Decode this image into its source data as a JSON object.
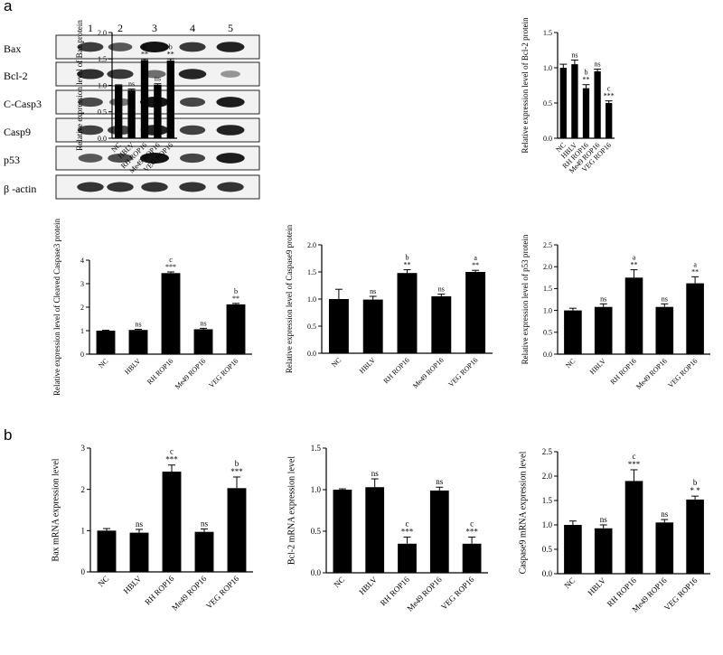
{
  "panel_labels": [
    "a",
    "b"
  ],
  "blot": {
    "lane_numbers": [
      "1",
      "2",
      "3",
      "4",
      "5"
    ],
    "rows": [
      {
        "label": "Bax",
        "intensity": [
          0.78,
          0.62,
          1.0,
          0.8,
          0.92
        ]
      },
      {
        "label": "Bcl-2",
        "intensity": [
          0.85,
          0.8,
          0.5,
          0.9,
          0.28
        ]
      },
      {
        "label": "C-Casp3",
        "intensity": [
          0.7,
          0.45,
          1.0,
          0.72,
          0.95
        ]
      },
      {
        "label": "Casp9",
        "intensity": [
          0.75,
          0.72,
          0.92,
          0.75,
          0.92
        ]
      },
      {
        "label": "p53",
        "intensity": [
          0.62,
          0.68,
          1.0,
          0.72,
          0.96
        ]
      },
      {
        "label": "β -actin",
        "intensity": [
          0.82,
          0.82,
          0.82,
          0.82,
          0.82
        ]
      }
    ]
  },
  "chart_data": [
    {
      "type": "bar",
      "ylabel": "Relative expression level of Bax protein",
      "categories": [
        "NC",
        "HBLV",
        "RH ROP16",
        "Me49 ROP16",
        "VEG ROP16"
      ],
      "values": [
        1.0,
        0.91,
        1.48,
        1.01,
        1.47
      ],
      "errors": [
        0.01,
        0.02,
        0.02,
        0.02,
        0.03
      ],
      "annotations": [
        [
          "",
          ""
        ],
        [
          "ns",
          ""
        ],
        [
          "**",
          "b"
        ],
        [
          "ns",
          ""
        ],
        [
          "**",
          "b"
        ]
      ],
      "ylim": [
        0,
        2.0
      ],
      "yticks": [
        "0.0",
        "0.5",
        "1.0",
        "1.5",
        "2.0"
      ]
    },
    {
      "type": "bar",
      "ylabel": "Relative expression level of Bcl-2 protein",
      "categories": [
        "NC",
        "HBLV",
        "RH ROP16",
        "Me49 ROP16",
        "VEG ROP16"
      ],
      "values": [
        1.0,
        1.05,
        0.71,
        0.95,
        0.5
      ],
      "errors": [
        0.05,
        0.06,
        0.05,
        0.03,
        0.03
      ],
      "annotations": [
        [
          "",
          ""
        ],
        [
          "ns",
          ""
        ],
        [
          "**",
          "b"
        ],
        [
          "ns",
          ""
        ],
        [
          "***",
          "c"
        ]
      ],
      "ylim": [
        0,
        1.5
      ],
      "yticks": [
        "0.0",
        "0.5",
        "1.0",
        "1.5"
      ]
    },
    {
      "type": "bar",
      "ylabel": "Relative expression level of Cleaved Caspase3 protein",
      "categories": [
        "NC",
        "HBLV",
        "RH ROP16",
        "Me49 ROP16",
        "VEG ROP16"
      ],
      "values": [
        1.0,
        1.03,
        3.45,
        1.06,
        2.12
      ],
      "errors": [
        0.02,
        0.03,
        0.05,
        0.04,
        0.04
      ],
      "annotations": [
        [
          "",
          ""
        ],
        [
          "ns",
          ""
        ],
        [
          "***",
          "c"
        ],
        [
          "ns",
          ""
        ],
        [
          "**",
          "b"
        ]
      ],
      "ylim": [
        0,
        4
      ],
      "yticks": [
        "0",
        "1",
        "2",
        "3",
        "4"
      ]
    },
    {
      "type": "bar",
      "ylabel": "Relative expression level of Caspase9 protein",
      "categories": [
        "NC",
        "HBLV",
        "RH ROP16",
        "Me49 ROP16",
        "VEG ROP16"
      ],
      "values": [
        1.0,
        0.99,
        1.48,
        1.05,
        1.5
      ],
      "errors": [
        0.18,
        0.06,
        0.06,
        0.04,
        0.03
      ],
      "annotations": [
        [
          "",
          ""
        ],
        [
          "ns",
          ""
        ],
        [
          "**",
          "b"
        ],
        [
          "ns",
          ""
        ],
        [
          "**",
          "a"
        ]
      ],
      "ylim": [
        0,
        2.0
      ],
      "yticks": [
        "0.0",
        "0.5",
        "1.0",
        "1.5",
        "2.0"
      ]
    },
    {
      "type": "bar",
      "ylabel": "Relative expression level of p53 protein",
      "categories": [
        "NC",
        "HBLV",
        "RH ROP16",
        "Me49 ROP16",
        "VEG ROP16"
      ],
      "values": [
        1.0,
        1.08,
        1.75,
        1.08,
        1.62
      ],
      "errors": [
        0.05,
        0.07,
        0.18,
        0.07,
        0.15
      ],
      "annotations": [
        [
          "",
          ""
        ],
        [
          "ns",
          ""
        ],
        [
          "**",
          "a"
        ],
        [
          "ns",
          ""
        ],
        [
          "**",
          "a"
        ]
      ],
      "ylim": [
        0,
        2.5
      ],
      "yticks": [
        "0.0",
        "0.5",
        "1.0",
        "1.5",
        "2.0",
        "2.5"
      ]
    },
    {
      "type": "bar",
      "ylabel": "Bax mRNA expression level",
      "categories": [
        "NC",
        "HBLV",
        "RH ROP16",
        "Me49 ROP16",
        "VEG ROP16"
      ],
      "values": [
        1.0,
        0.95,
        2.43,
        0.97,
        2.03
      ],
      "errors": [
        0.05,
        0.08,
        0.16,
        0.07,
        0.27
      ],
      "annotations": [
        [
          "",
          ""
        ],
        [
          "ns",
          ""
        ],
        [
          "***",
          "c"
        ],
        [
          "ns",
          ""
        ],
        [
          "***",
          "b"
        ]
      ],
      "ylim": [
        0,
        3
      ],
      "yticks": [
        "0",
        "1",
        "2",
        "3"
      ]
    },
    {
      "type": "bar",
      "ylabel": "Bcl-2 mRNA expression level",
      "categories": [
        "NC",
        "HBLV",
        "RH ROP16",
        "Me49 ROP16",
        "VEG ROP16"
      ],
      "values": [
        1.0,
        1.03,
        0.35,
        0.99,
        0.35
      ],
      "errors": [
        0.01,
        0.1,
        0.08,
        0.04,
        0.08
      ],
      "annotations": [
        [
          "",
          ""
        ],
        [
          "ns",
          ""
        ],
        [
          "***",
          "c"
        ],
        [
          "ns",
          ""
        ],
        [
          "***",
          "c"
        ]
      ],
      "ylim": [
        0,
        1.5
      ],
      "yticks": [
        "0.0",
        "0.5",
        "1.0",
        "1.5"
      ]
    },
    {
      "type": "bar",
      "ylabel": "Caspase9 mRNA expression level",
      "categories": [
        "NC",
        "HBLV",
        "RH ROP16",
        "Me49 ROP16",
        "VEG ROP16"
      ],
      "values": [
        1.0,
        0.93,
        1.9,
        1.05,
        1.52
      ],
      "errors": [
        0.08,
        0.07,
        0.23,
        0.06,
        0.07
      ],
      "annotations": [
        [
          "",
          ""
        ],
        [
          "ns",
          ""
        ],
        [
          "***",
          "c"
        ],
        [
          "ns",
          ""
        ],
        [
          "* *",
          "b"
        ]
      ],
      "ylim": [
        0,
        2.5
      ],
      "yticks": [
        "0.0",
        "0.5",
        "1.0",
        "1.5",
        "2.0",
        "2.5"
      ]
    }
  ]
}
